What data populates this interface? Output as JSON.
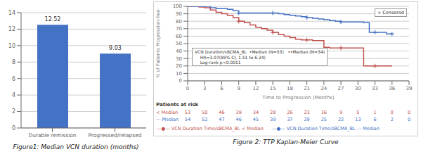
{
  "chart_data": [
    {
      "type": "bar",
      "title": "Figure1: Median VCN duration (months)",
      "categories": [
        "Durable remission",
        "Progressed/relapsed"
      ],
      "values": [
        12.52,
        9.03
      ],
      "color": "#4472C4",
      "ylim": [
        0,
        14
      ],
      "yticks": [
        0,
        2,
        4,
        6,
        8,
        10,
        12,
        14
      ],
      "grid": true,
      "data_labels": true
    },
    {
      "type": "step",
      "title": "Figure 2: TTP Kaplan-Meier Curve",
      "xlabel": "Time to Progression (Months)",
      "ylabel": "% of Patients Progression-free",
      "x": [
        0,
        1,
        2,
        3,
        4,
        5,
        6,
        7,
        8,
        9,
        10,
        11,
        12,
        13,
        14,
        15,
        16,
        17,
        18,
        19,
        20,
        21,
        22,
        23,
        24,
        25,
        26,
        27,
        28,
        29,
        30,
        31,
        32,
        33,
        34,
        35,
        36
      ],
      "series": [
        {
          "name": "—●— VCN Duration Time/sBCMA_BL < Median",
          "color": "#C0504D",
          "values": [
            100,
            100,
            99,
            98,
            95,
            92,
            90,
            88,
            85,
            80,
            78,
            75,
            72,
            70,
            68,
            65,
            62,
            60,
            58,
            56,
            55,
            55,
            54,
            54,
            45,
            44,
            44,
            44,
            44,
            44,
            44,
            20,
            20,
            20,
            20,
            20,
            20
          ],
          "censored_x": [
            9,
            15,
            21,
            27,
            33
          ],
          "censored_values": [
            80,
            65,
            55,
            44,
            20
          ]
        },
        {
          "name": "—●— VCN Duration Time/sBCMA_BL –– Median",
          "color": "#4472C4",
          "values": [
            100,
            100,
            100,
            100,
            98,
            97,
            97,
            96,
            94,
            91,
            91,
            91,
            91,
            91,
            91,
            91,
            90,
            89,
            88,
            87,
            86,
            85,
            84,
            83,
            82,
            81,
            80,
            79,
            79,
            79,
            79,
            78,
            65,
            65,
            65,
            63,
            63
          ],
          "censored_x": [
            9,
            15,
            21,
            27,
            33,
            36
          ],
          "censored_values": [
            91,
            91,
            85,
            79,
            65,
            63
          ]
        }
      ],
      "xlim": [
        0,
        39
      ],
      "ylim": [
        0,
        100
      ],
      "xticks": [
        0,
        3,
        6,
        9,
        12,
        15,
        18,
        21,
        24,
        27,
        30,
        33,
        36,
        39
      ],
      "yticks": [
        0,
        10,
        20,
        30,
        40,
        50,
        60,
        70,
        80,
        90,
        100
      ],
      "grid": true,
      "annotations": [
        "VCN Duration/sBCMA_BL  •Median (N=53)   ••Median (N=54)\n    HR=3.07(95% CI, 1.51 to 6.24)\n    Log-rank p<0.0011",
        "+ Censored"
      ],
      "risk_table": {
        "title": "Patients at risk",
        "x": [
          0,
          3,
          6,
          9,
          12,
          15,
          18,
          21,
          24,
          27,
          30,
          33,
          36,
          39
        ],
        "rows": [
          {
            "name": "< Median",
            "color": "#C0504D",
            "values": [
              53,
              50,
              46,
              39,
              34,
              28,
              26,
              23,
              16,
              9,
              5,
              1,
              0,
              0
            ]
          },
          {
            "name": "–– Median",
            "color": "#4472C4",
            "values": [
              54,
              52,
              47,
              46,
              45,
              39,
              37,
              29,
              25,
              22,
              13,
              6,
              2,
              0
            ]
          }
        ]
      }
    }
  ]
}
